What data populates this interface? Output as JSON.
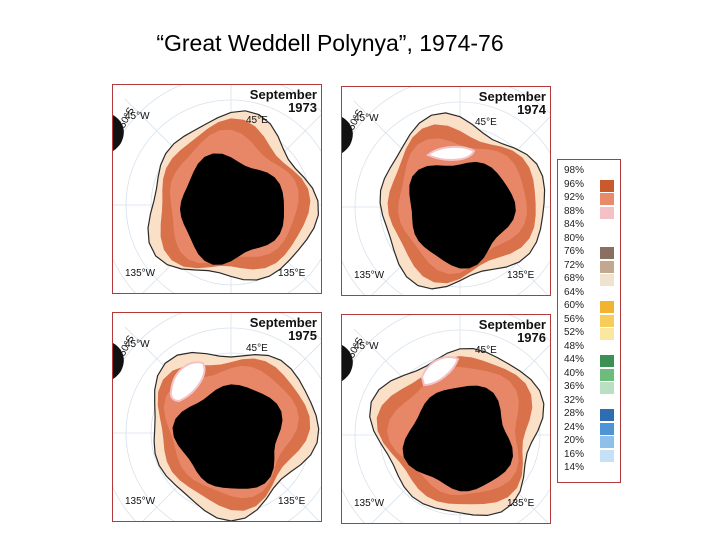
{
  "title": "“Great Weddell Polynya”, 1974-76",
  "axis_labels": {
    "lon_45w": "45°W",
    "lon_45e": "45°E",
    "lat_50s": "50°S",
    "lon_135w": "135°W",
    "lon_135e": "135°E"
  },
  "panels": [
    {
      "month": "September",
      "year": "1973"
    },
    {
      "month": "September",
      "year": "1974"
    },
    {
      "month": "September",
      "year": "1975"
    },
    {
      "month": "September",
      "year": "1976"
    }
  ],
  "legend": [
    {
      "label": "98%",
      "color": ""
    },
    {
      "label": "96%",
      "color": "#c95a2e"
    },
    {
      "label": "92%",
      "color": "#e98a6b"
    },
    {
      "label": "88%",
      "color": "#f4c2c6"
    },
    {
      "label": "84%",
      "color": ""
    },
    {
      "label": "80%",
      "color": ""
    },
    {
      "label": "76%",
      "color": "#8a7060"
    },
    {
      "label": "72%",
      "color": "#c2a890"
    },
    {
      "label": "68%",
      "color": "#efe2cf"
    },
    {
      "label": "64%",
      "color": ""
    },
    {
      "label": "60%",
      "color": "#f2b331"
    },
    {
      "label": "56%",
      "color": "#f6cd5a"
    },
    {
      "label": "52%",
      "color": "#fae7a0"
    },
    {
      "label": "48%",
      "color": ""
    },
    {
      "label": "44%",
      "color": "#3c8f55"
    },
    {
      "label": "40%",
      "color": "#6dbb7d"
    },
    {
      "label": "36%",
      "color": "#b9e0c2"
    },
    {
      "label": "32%",
      "color": ""
    },
    {
      "label": "28%",
      "color": "#2f6db3"
    },
    {
      "label": "24%",
      "color": "#4f95d5"
    },
    {
      "label": "20%",
      "color": "#8dc0ea"
    },
    {
      "label": "16%",
      "color": "#c6e1f6"
    },
    {
      "label": "14%",
      "color": ""
    }
  ]
}
